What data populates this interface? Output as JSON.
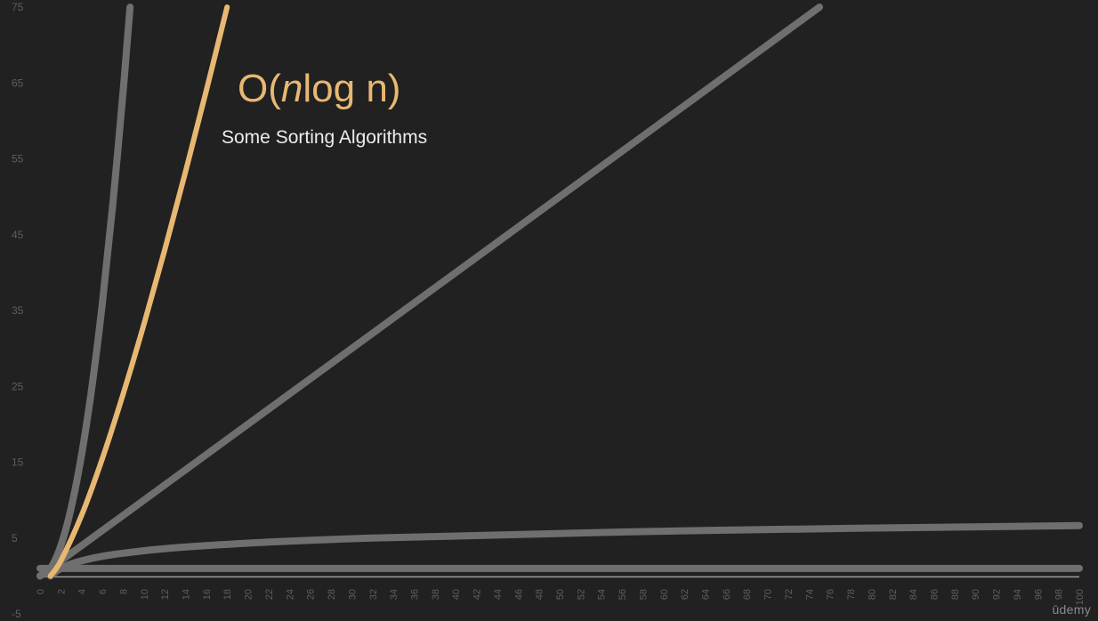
{
  "title": {
    "prefix": "O(",
    "italic": "n",
    "suffix": "log n)"
  },
  "subtitle": "Some Sorting Algorithms",
  "logo": "ūdemy",
  "colors": {
    "background": "#212121",
    "highlight": "#e8b872",
    "muted_curve": "#6f6f6f",
    "axis": "#9a9a9a",
    "tick_label": "#5e5e5e"
  },
  "chart_data": {
    "type": "line",
    "xlim": [
      0,
      100
    ],
    "ylim": [
      -5,
      75
    ],
    "x_ticks": [
      0,
      2,
      4,
      6,
      8,
      10,
      12,
      14,
      16,
      18,
      20,
      22,
      24,
      26,
      28,
      30,
      32,
      34,
      36,
      38,
      40,
      42,
      44,
      46,
      48,
      50,
      52,
      54,
      56,
      58,
      60,
      62,
      64,
      66,
      68,
      70,
      72,
      74,
      76,
      78,
      80,
      82,
      84,
      86,
      88,
      90,
      92,
      94,
      96,
      98,
      100
    ],
    "y_ticks": [
      -5,
      5,
      15,
      25,
      35,
      45,
      55,
      65,
      75
    ],
    "grid": false,
    "series": [
      {
        "function": "n^2",
        "highlighted": false,
        "points": [
          [
            0,
            0
          ],
          [
            1,
            1
          ],
          [
            2,
            4
          ],
          [
            3,
            9
          ],
          [
            4,
            16
          ],
          [
            5,
            25
          ],
          [
            6,
            36
          ],
          [
            7,
            49
          ],
          [
            8,
            64
          ],
          [
            8.66,
            75
          ]
        ]
      },
      {
        "function": "n*log2(n)",
        "highlighted": true,
        "points": [
          [
            1,
            0
          ],
          [
            2,
            2
          ],
          [
            4,
            8
          ],
          [
            6,
            15.5
          ],
          [
            8,
            24
          ],
          [
            10,
            33.2
          ],
          [
            12,
            43
          ],
          [
            14,
            53.3
          ],
          [
            16,
            64
          ],
          [
            18,
            75
          ]
        ]
      },
      {
        "function": "n",
        "highlighted": false,
        "points": [
          [
            0,
            0
          ],
          [
            25,
            25
          ],
          [
            50,
            50
          ],
          [
            75,
            75
          ]
        ]
      },
      {
        "function": "log2(n)",
        "highlighted": false,
        "points": [
          [
            1,
            0
          ],
          [
            2,
            1
          ],
          [
            4,
            2
          ],
          [
            8,
            3
          ],
          [
            16,
            4
          ],
          [
            32,
            5
          ],
          [
            64,
            6
          ],
          [
            100,
            6.64
          ]
        ]
      },
      {
        "function": "1",
        "highlighted": false,
        "points": [
          [
            0,
            1
          ],
          [
            100,
            1
          ]
        ]
      }
    ]
  }
}
